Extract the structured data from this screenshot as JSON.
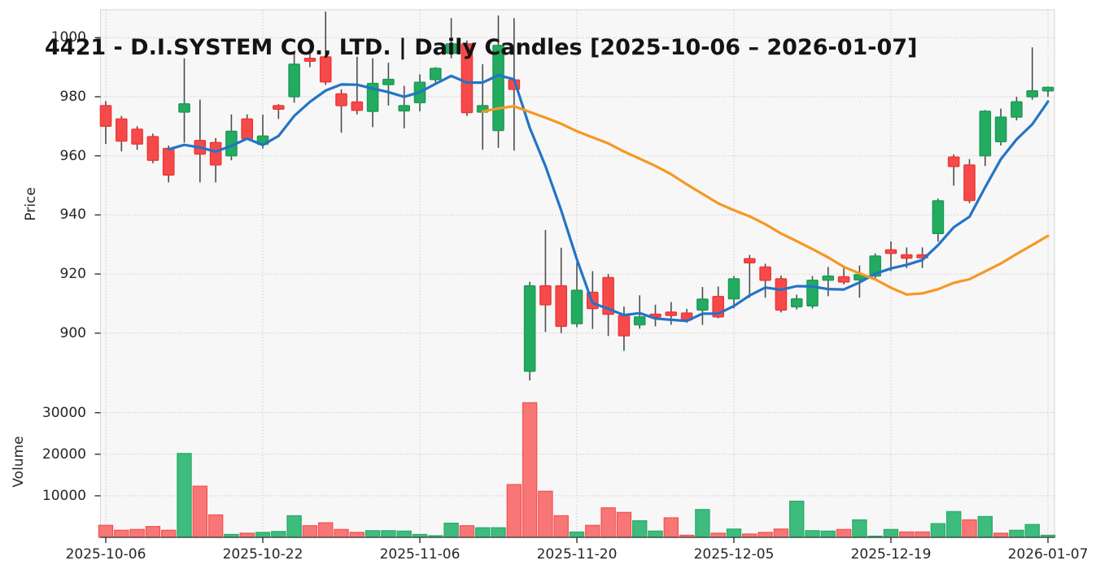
{
  "title": "4421 - D.I.SYSTEM CO., LTD. | Daily Candles [2025-10-06 – 2026-01-07]",
  "price_axis": {
    "label": "Price",
    "ticks": [
      1000,
      980,
      960,
      940,
      920,
      900
    ]
  },
  "volume_axis": {
    "label": "Volume",
    "ticks": [
      30000,
      20000,
      10000
    ]
  },
  "x_axis": {
    "ticks": [
      {
        "index": 0,
        "label": "2025-10-06"
      },
      {
        "index": 10,
        "label": "2025-10-22"
      },
      {
        "index": 20,
        "label": "2025-11-06"
      },
      {
        "index": 30,
        "label": "2025-11-20"
      },
      {
        "index": 40,
        "label": "2025-12-05"
      },
      {
        "index": 50,
        "label": "2025-12-19"
      },
      {
        "index": 60,
        "label": "2026-01-07"
      }
    ]
  },
  "chart_data": {
    "type": "candlestick",
    "title": "4421 - D.I.SYSTEM CO., LTD. | Daily Candles [2025-10-06 – 2026-01-07]",
    "xlabel": "",
    "ylabel_price": "Price",
    "ylabel_volume": "Volume",
    "grid": true,
    "legend": false,
    "count": 61,
    "price_ylim": [
      881.8,
      1009.4
    ],
    "volume_ylim": [
      0,
      35200
    ],
    "ohlc": [
      [
        977.0,
        978.5,
        964.0,
        970.0
      ],
      [
        972.5,
        973.5,
        961.5,
        965.0
      ],
      [
        969.0,
        970.0,
        962.0,
        964.0
      ],
      [
        966.5,
        967.5,
        957.5,
        958.5
      ],
      [
        962.5,
        963.5,
        951.0,
        953.5
      ],
      [
        974.8,
        993.0,
        964.5,
        977.6
      ],
      [
        965.2,
        979.0,
        951.0,
        960.6
      ],
      [
        964.5,
        966.0,
        951.0,
        956.9
      ],
      [
        960.0,
        974.0,
        958.5,
        968.3
      ],
      [
        972.5,
        974.0,
        965.5,
        965.8
      ],
      [
        963.9,
        974.0,
        962.5,
        966.7
      ],
      [
        977.0,
        977.5,
        972.5,
        975.8
      ],
      [
        980.0,
        995.0,
        978.0,
        991.0
      ],
      [
        993.0,
        994.5,
        990.0,
        992.0
      ],
      [
        993.5,
        1008.8,
        984.0,
        985.0
      ],
      [
        981.0,
        982.5,
        967.8,
        977.0
      ],
      [
        978.2,
        993.5,
        974.0,
        975.4
      ],
      [
        975.0,
        993.0,
        969.7,
        984.5
      ],
      [
        984.1,
        991.5,
        977.0,
        985.9
      ],
      [
        975.2,
        983.7,
        969.3,
        977.0
      ],
      [
        978.0,
        987.6,
        975.1,
        984.9
      ],
      [
        985.8,
        990.0,
        984.0,
        989.6
      ],
      [
        994.7,
        1006.6,
        993.0,
        997.9
      ],
      [
        997.9,
        999.0,
        973.5,
        974.6
      ],
      [
        974.8,
        991.0,
        962.1,
        977.0
      ],
      [
        968.6,
        1007.5,
        962.7,
        997.4
      ],
      [
        985.7,
        1006.6,
        961.8,
        982.5
      ],
      [
        887.1,
        917.4,
        884.0,
        916.0
      ],
      [
        916.0,
        934.9,
        900.4,
        909.6
      ],
      [
        916.0,
        928.9,
        900.0,
        902.3
      ],
      [
        903.2,
        923.9,
        902.0,
        914.5
      ],
      [
        913.8,
        921.0,
        901.4,
        908.3
      ],
      [
        918.8,
        920.0,
        899.0,
        906.4
      ],
      [
        906.0,
        909.0,
        894.0,
        899.1
      ],
      [
        902.8,
        912.8,
        901.5,
        905.5
      ],
      [
        906.4,
        909.6,
        902.3,
        905.5
      ],
      [
        907.1,
        910.5,
        902.8,
        906.0
      ],
      [
        906.8,
        908.2,
        903.5,
        904.5
      ],
      [
        907.8,
        915.6,
        902.8,
        911.5
      ],
      [
        912.4,
        915.8,
        905.0,
        905.5
      ],
      [
        911.6,
        919.3,
        908.4,
        918.4
      ],
      [
        925.2,
        926.5,
        912.0,
        923.8
      ],
      [
        922.4,
        923.5,
        912.0,
        917.9
      ],
      [
        918.4,
        919.5,
        907.0,
        907.8
      ],
      [
        908.9,
        913.0,
        908.0,
        911.6
      ],
      [
        909.2,
        919.3,
        908.3,
        917.9
      ],
      [
        917.9,
        922.4,
        912.5,
        919.3
      ],
      [
        919.1,
        922.9,
        916.5,
        917.3
      ],
      [
        918.0,
        922.9,
        912.0,
        919.8
      ],
      [
        919.3,
        927.0,
        918.0,
        926.1
      ],
      [
        928.2,
        931.1,
        921.0,
        927.0
      ],
      [
        926.5,
        929.0,
        922.0,
        925.4
      ],
      [
        926.5,
        929.0,
        922.0,
        925.5
      ],
      [
        933.7,
        945.5,
        931.0,
        944.8
      ],
      [
        959.6,
        960.5,
        949.9,
        956.4
      ],
      [
        956.9,
        958.9,
        944.0,
        944.9
      ],
      [
        960.0,
        975.5,
        956.6,
        975.1
      ],
      [
        964.8,
        976.0,
        963.5,
        973.1
      ],
      [
        973.1,
        980.0,
        972.0,
        978.3
      ],
      [
        980.0,
        996.7,
        979.0,
        982.0
      ],
      [
        982.0,
        983.5,
        980.0,
        983.2
      ]
    ],
    "volume": [
      2900,
      1700,
      1900,
      2600,
      1700,
      20200,
      12300,
      5400,
      700,
      1000,
      1200,
      1400,
      5200,
      2800,
      3500,
      1900,
      1200,
      1600,
      1600,
      1500,
      700,
      400,
      3400,
      2800,
      2300,
      2300,
      12700,
      32400,
      11100,
      5200,
      1300,
      2900,
      7100,
      6000,
      4000,
      1500,
      4700,
      500,
      6700,
      1000,
      2000,
      800,
      1200,
      2000,
      8700,
      1600,
      1500,
      1900,
      4200,
      300,
      1900,
      1300,
      1300,
      3300,
      6200,
      4200,
      5000,
      1000,
      1700,
      3100,
      500
    ],
    "volume_colors": [
      "down",
      "down",
      "down",
      "down",
      "down",
      "up",
      "down",
      "down",
      "up",
      "down",
      "up",
      "up",
      "up",
      "down",
      "down",
      "down",
      "down",
      "up",
      "up",
      "up",
      "up",
      "up",
      "up",
      "down",
      "up",
      "up",
      "down",
      "down",
      "down",
      "down",
      "up",
      "down",
      "down",
      "down",
      "up",
      "up",
      "down",
      "down",
      "up",
      "down",
      "up",
      "down",
      "down",
      "down",
      "up",
      "up",
      "up",
      "down",
      "up",
      "up",
      "up",
      "down",
      "down",
      "up",
      "up",
      "down",
      "up",
      "down",
      "up",
      "up",
      "up"
    ],
    "moving_averages": [
      {
        "name": "SMA5",
        "window": 5,
        "color": "#2474c5"
      },
      {
        "name": "SMA25",
        "window": 25,
        "color": "#f79723"
      }
    ],
    "colors": {
      "up": "#23ab60",
      "up_border": "#1b9a54",
      "down": "#f64a4a",
      "down_border": "#ee3434",
      "wick": "#4d4d4d",
      "vol_up": "#3ebc7d",
      "vol_up_border": "#27aa67",
      "vol_down": "#f87676",
      "vol_down_border": "#f25050",
      "panel_bg": "#f7f7f7",
      "grid": "#c9c9c9",
      "axis_spine": "#d4d4d4",
      "bottom_spine": "#3a3a3a",
      "tick_mark": "#333333"
    }
  }
}
